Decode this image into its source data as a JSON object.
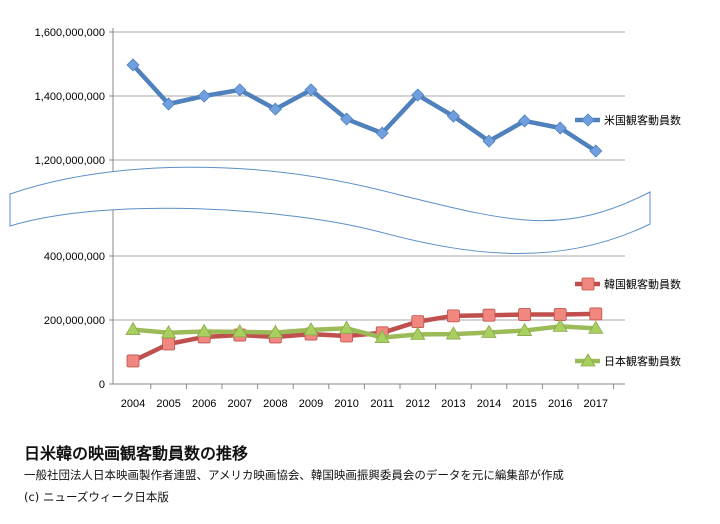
{
  "chart_data": {
    "type": "line",
    "title": "日米韓の映画観客動員数の推移",
    "subtitle": "一般社団法人日本映画製作者連盟、アメリカ映画協会、韓国映画振興委員会のデータを元に編集部が作成",
    "credit": "(c) ニューズウィーク日本版",
    "xlabel": "",
    "ylabel": "",
    "categories": [
      "2004",
      "2005",
      "2006",
      "2007",
      "2008",
      "2009",
      "2010",
      "2011",
      "2012",
      "2013",
      "2014",
      "2015",
      "2016",
      "2017"
    ],
    "y_axis_break": [
      400000000,
      1200000000
    ],
    "ylim": [
      0,
      1600000000
    ],
    "yticks": [
      {
        "value": 0,
        "label": "0"
      },
      {
        "value": 200000000,
        "label": "200,000,000"
      },
      {
        "value": 400000000,
        "label": "400,000,000"
      },
      {
        "value": 1200000000,
        "label": "1,200,000,000"
      },
      {
        "value": 1400000000,
        "label": "1,400,000,000"
      },
      {
        "value": 1600000000,
        "label": "1,600,000,000"
      }
    ],
    "grid": true,
    "legend_placement": "right",
    "series": [
      {
        "name": "米国観客動員数",
        "color": "#4f81bd",
        "marker": "diamond",
        "marker_color": "#6f9fdf",
        "values": [
          1497000000,
          1375000000,
          1400000000,
          1419000000,
          1359000000,
          1419000000,
          1328000000,
          1284000000,
          1403000000,
          1337000000,
          1259000000,
          1322000000,
          1300000000,
          1228000000
        ]
      },
      {
        "name": "韓国観客動員数",
        "color": "#c0504d",
        "marker": "square",
        "marker_color": "#f08880",
        "values": [
          72000000,
          125000000,
          147000000,
          153000000,
          147000000,
          156000000,
          150000000,
          160000000,
          195000000,
          213000000,
          215000000,
          217000000,
          217000000,
          219000000
        ]
      },
      {
        "name": "日本観客動員数",
        "color": "#9bbb59",
        "marker": "triangle",
        "marker_color": "#a8d060",
        "values": [
          170000000,
          160000000,
          164000000,
          163000000,
          161000000,
          169000000,
          174000000,
          145000000,
          155000000,
          156000000,
          161000000,
          167000000,
          180000000,
          174000000
        ]
      }
    ]
  }
}
